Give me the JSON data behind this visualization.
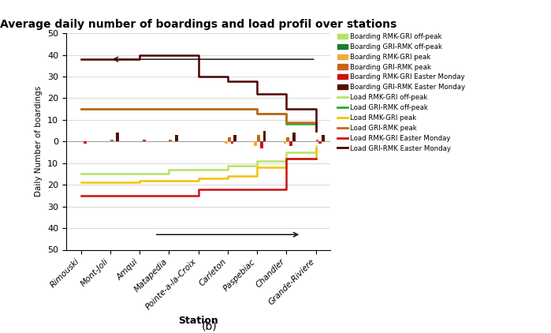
{
  "title": "Average daily number of boardings and load profil over stations",
  "xlabel": "Station",
  "ylabel": "Daily Number of boardings",
  "stations": [
    "Rimouski",
    "Mont-Joli",
    "Amqui",
    "Matapedia",
    "Pointe-a-la-Croix",
    "Carleton",
    "Paspebiac",
    "Chandler",
    "Grande-Riviere"
  ],
  "load_rmk_gri_offpeak": [
    15,
    15,
    15,
    13,
    13,
    11,
    9,
    5,
    2
  ],
  "load_gri_rmk_offpeak": [
    -15,
    -15,
    -15,
    -15,
    -15,
    -15,
    -13,
    -8,
    -5
  ],
  "load_rmk_gri_peak": [
    19,
    19,
    18,
    18,
    17,
    16,
    12,
    8,
    3
  ],
  "load_gri_rmk_peak": [
    -15,
    -15,
    -15,
    -15,
    -15,
    -15,
    -13,
    -9,
    -5
  ],
  "load_rmk_gri_easter": [
    25,
    25,
    25,
    25,
    22,
    22,
    22,
    8,
    8
  ],
  "load_gri_rmk_easter": [
    -38,
    -38,
    -40,
    -40,
    -30,
    -28,
    -22,
    -15,
    -5
  ],
  "boarding_rmk_gri_offpeak": [
    0,
    0,
    0,
    0,
    0,
    0,
    0,
    0,
    0
  ],
  "boarding_gri_rmk_offpeak": [
    0,
    0,
    0,
    0,
    0,
    0,
    0,
    0,
    0
  ],
  "boarding_rmk_gri_peak": [
    0,
    0,
    0,
    0,
    0,
    1,
    2,
    1,
    0
  ],
  "boarding_gri_rmk_peak": [
    0,
    -1,
    0,
    -1,
    0,
    -2,
    -3,
    -2,
    -1
  ],
  "boarding_rmk_gri_easter": [
    1,
    0,
    -1,
    0,
    0,
    1,
    3,
    2,
    1
  ],
  "boarding_gri_rmk_easter": [
    0,
    -4,
    0,
    -3,
    0,
    -3,
    -5,
    -4,
    -3
  ],
  "colors": {
    "boarding_rmk_gri_offpeak": "#b5e461",
    "boarding_gri_rmk_offpeak": "#1a7d2e",
    "boarding_rmk_gri_peak": "#f5a93b",
    "boarding_gri_rmk_peak": "#c8641a",
    "boarding_rmk_gri_easter": "#cc1111",
    "boarding_gri_rmk_easter": "#4d1500",
    "load_rmk_gri_offpeak": "#b5e461",
    "load_gri_rmk_offpeak": "#22aa33",
    "load_rmk_gri_peak": "#f5c200",
    "load_gri_rmk_peak": "#c8641a",
    "load_rmk_gri_easter": "#cc1111",
    "load_gri_rmk_easter": "#4d0000"
  },
  "legend_labels_bar": [
    "Boarding RMK-GRI off-peak",
    "Boarding GRI-RMK off-peak",
    "Boarding RMK-GRI peak",
    "Boarding GRI-RMK peak",
    "Boarding RMK-GRI Easter Monday",
    "Boarding GRI-RMK Easter Monday"
  ],
  "legend_labels_line": [
    "Load RMK-GRI off-peak",
    "Load GRI-RMK off-peak",
    "Load RMK-GRI peak",
    "Load GRI-RMK peak",
    "Load RMK-GRI Easter Monday",
    "Load GRI-RMK Easter Monday"
  ]
}
